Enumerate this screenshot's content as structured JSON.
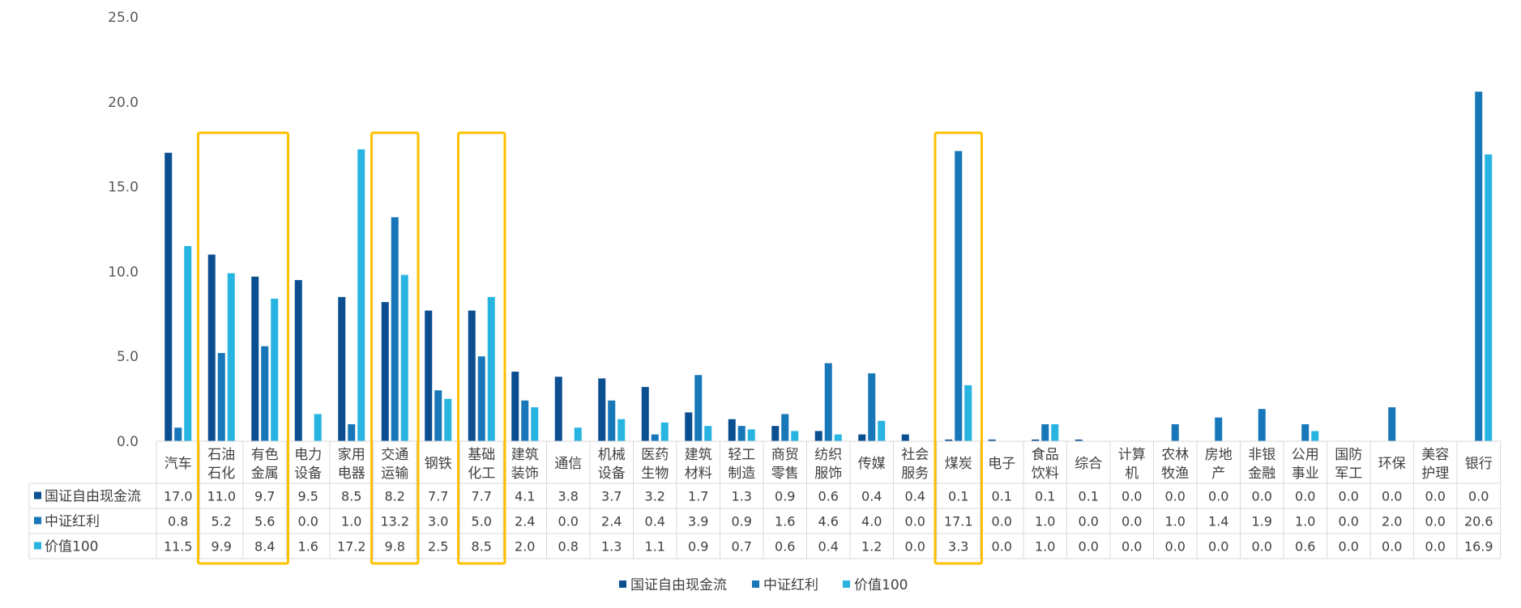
{
  "chart_data": {
    "type": "bar",
    "ylim": [
      0,
      25
    ],
    "yticks": [
      "0.0",
      "5.0",
      "10.0",
      "15.0",
      "20.0",
      "25.0"
    ],
    "categories": [
      [
        "汽车"
      ],
      [
        "石油",
        "石化"
      ],
      [
        "有色",
        "金属"
      ],
      [
        "电力",
        "设备"
      ],
      [
        "家用",
        "电器"
      ],
      [
        "交通",
        "运输"
      ],
      [
        "钢铁"
      ],
      [
        "基础",
        "化工"
      ],
      [
        "建筑",
        "装饰"
      ],
      [
        "通信"
      ],
      [
        "机械",
        "设备"
      ],
      [
        "医药",
        "生物"
      ],
      [
        "建筑",
        "材料"
      ],
      [
        "轻工",
        "制造"
      ],
      [
        "商贸",
        "零售"
      ],
      [
        "纺织",
        "服饰"
      ],
      [
        "传媒"
      ],
      [
        "社会",
        "服务"
      ],
      [
        "煤炭"
      ],
      [
        "电子"
      ],
      [
        "食品",
        "饮料"
      ],
      [
        "综合"
      ],
      [
        "计算",
        "机"
      ],
      [
        "农林",
        "牧渔"
      ],
      [
        "房地",
        "产"
      ],
      [
        "非银",
        "金融"
      ],
      [
        "公用",
        "事业"
      ],
      [
        "国防",
        "军工"
      ],
      [
        "环保"
      ],
      [
        "美容",
        "护理"
      ],
      [
        "银行"
      ]
    ],
    "series": [
      {
        "name": "国证自由现金流",
        "color": "#0b4f91",
        "values": [
          17.0,
          11.0,
          9.7,
          9.5,
          8.5,
          8.2,
          7.7,
          7.7,
          4.1,
          3.8,
          3.7,
          3.2,
          1.7,
          1.3,
          0.9,
          0.6,
          0.4,
          0.4,
          0.1,
          0.1,
          0.1,
          0.1,
          0.0,
          0.0,
          0.0,
          0.0,
          0.0,
          0.0,
          0.0,
          0.0,
          0.0
        ],
        "labels": [
          "17.0",
          "11.0",
          "9.7",
          "9.5",
          "8.5",
          "8.2",
          "7.7",
          "7.7",
          "4.1",
          "3.8",
          "3.7",
          "3.2",
          "1.7",
          "1.3",
          "0.9",
          "0.6",
          "0.4",
          "0.4",
          "0.1",
          "0.1",
          "0.1",
          "0.1",
          "0.0",
          "0.0",
          "0.0",
          "0.0",
          "0.0",
          "0.0",
          "0.0",
          "0.0",
          "0.0"
        ]
      },
      {
        "name": "中证红利",
        "color": "#1777b8",
        "values": [
          0.8,
          5.2,
          5.6,
          0.0,
          1.0,
          13.2,
          3.0,
          5.0,
          2.4,
          0.0,
          2.4,
          0.4,
          3.9,
          0.9,
          1.6,
          4.6,
          4.0,
          0.0,
          17.1,
          0.0,
          1.0,
          0.0,
          0.0,
          1.0,
          1.4,
          1.9,
          1.0,
          0.0,
          2.0,
          0.0,
          20.6
        ],
        "labels": [
          "0.8",
          "5.2",
          "5.6",
          "0.0",
          "1.0",
          "13.2",
          "3.0",
          "5.0",
          "2.4",
          "0.0",
          "2.4",
          "0.4",
          "3.9",
          "0.9",
          "1.6",
          "4.6",
          "4.0",
          "0.0",
          "17.1",
          "0.0",
          "1.0",
          "0.0",
          "0.0",
          "1.0",
          "1.4",
          "1.9",
          "1.0",
          "0.0",
          "2.0",
          "0.0",
          "20.6"
        ]
      },
      {
        "name": "价值100",
        "color": "#27b4e0",
        "values": [
          11.5,
          9.9,
          8.4,
          1.6,
          17.2,
          9.8,
          2.5,
          8.5,
          2.0,
          0.8,
          1.3,
          1.1,
          0.9,
          0.7,
          0.6,
          0.4,
          1.2,
          0.0,
          3.3,
          0.0,
          1.0,
          0.0,
          0.0,
          0.0,
          0.0,
          0.0,
          0.6,
          0.0,
          0.0,
          0.0,
          16.9
        ],
        "labels": [
          "11.5",
          "9.9",
          "8.4",
          "1.6",
          "17.2",
          "9.8",
          "2.5",
          "8.5",
          "2.0",
          "0.8",
          "1.3",
          "1.1",
          "0.9",
          "0.7",
          "0.6",
          "0.4",
          "1.2",
          "0.0",
          "3.3",
          "0.0",
          "1.0",
          "0.0",
          "0.0",
          "0.0",
          "0.0",
          "0.0",
          "0.6",
          "0.0",
          "0.0",
          "0.0",
          "16.9"
        ]
      }
    ],
    "highlight_groups": [
      [
        1,
        2
      ],
      [
        5
      ],
      [
        7
      ],
      [
        18
      ]
    ],
    "highlight_color": "#ffc000",
    "grid": false,
    "data_table": true,
    "legend_position": "bottom"
  }
}
